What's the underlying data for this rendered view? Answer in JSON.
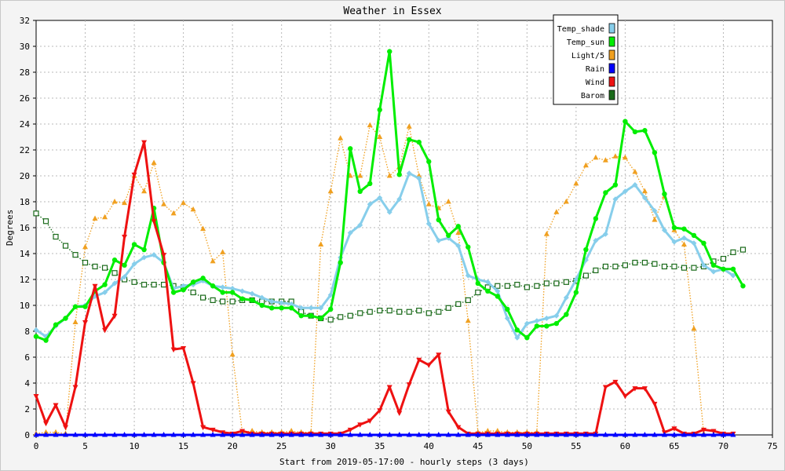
{
  "chart_data": {
    "type": "line",
    "title": "Weather in Essex",
    "xlabel": "Start from 2019-05-17:00 - hourly steps (3 days)",
    "ylabel": "Degrees",
    "xlim": [
      0,
      75
    ],
    "ylim": [
      0,
      32
    ],
    "xticks": [
      0,
      5,
      10,
      15,
      20,
      25,
      30,
      35,
      40,
      45,
      50,
      55,
      60,
      65,
      70,
      75
    ],
    "yticks": [
      0,
      2,
      4,
      6,
      8,
      10,
      12,
      14,
      16,
      18,
      20,
      22,
      24,
      26,
      28,
      30,
      32
    ],
    "grid": true,
    "legend_position": "top-right",
    "series": [
      {
        "name": "Temp_shade",
        "color": "#87ceeb",
        "marker": "diamond",
        "line": "solid",
        "values": [
          8.1,
          7.6,
          8.4,
          9.0,
          9.9,
          10.0,
          10.7,
          11.0,
          11.7,
          12.2,
          13.2,
          13.7,
          13.9,
          13.3,
          11.3,
          11.5,
          11.6,
          11.9,
          11.5,
          11.4,
          11.3,
          11.1,
          10.9,
          10.6,
          10.3,
          10.2,
          10.1,
          9.8,
          9.8,
          9.8,
          10.8,
          13.7,
          15.6,
          16.2,
          17.8,
          18.3,
          17.2,
          18.2,
          20.2,
          19.8,
          16.3,
          15.0,
          15.2,
          14.6,
          12.3,
          12.0,
          11.8,
          11.1,
          9.0,
          7.5,
          8.6,
          8.8,
          9.0,
          9.2,
          10.6,
          12.0,
          13.5,
          15.0,
          15.5,
          18.2,
          18.8,
          19.3,
          18.3,
          17.3,
          15.8,
          14.9,
          15.2,
          14.8,
          13.1,
          12.6,
          12.8,
          12.3
        ]
      },
      {
        "name": "Temp_sun",
        "color": "#00ee00",
        "marker": "circle",
        "line": "solid",
        "values": [
          7.6,
          7.3,
          8.5,
          9.0,
          9.9,
          9.9,
          11.1,
          11.6,
          13.5,
          13.1,
          14.7,
          14.3,
          17.5,
          13.3,
          11.0,
          11.2,
          11.8,
          12.1,
          11.5,
          11.0,
          11.0,
          10.5,
          10.4,
          10.0,
          9.8,
          9.8,
          9.8,
          9.2,
          9.2,
          9.0,
          9.7,
          13.3,
          22.1,
          18.8,
          19.4,
          25.1,
          29.6,
          20.1,
          22.8,
          22.6,
          21.1,
          16.6,
          15.4,
          16.1,
          14.5,
          11.7,
          11.1,
          10.7,
          9.7,
          8.1,
          7.5,
          8.4,
          8.4,
          8.6,
          9.3,
          11.0,
          14.3,
          16.7,
          18.7,
          19.3,
          24.2,
          23.4,
          23.5,
          21.8,
          18.6,
          16.0,
          15.9,
          15.4,
          14.8,
          13.1,
          12.8,
          12.8,
          11.5
        ]
      },
      {
        "name": "Light/5",
        "color": "#f0a020",
        "marker": "triangle-up",
        "line": "dotted",
        "values": [
          0.1,
          0.2,
          0.2,
          0.1,
          8.7,
          14.5,
          16.7,
          16.8,
          18.0,
          17.9,
          20.0,
          18.8,
          21.0,
          17.8,
          17.1,
          17.9,
          17.4,
          15.9,
          13.4,
          14.1,
          6.2,
          0.2,
          0.3,
          0.2,
          0.2,
          0.2,
          0.3,
          0.2,
          0.2,
          14.7,
          18.8,
          22.9,
          20.0,
          20.0,
          23.9,
          23.0,
          20.0,
          20.7,
          23.8,
          20.0,
          17.8,
          17.5,
          18.0,
          15.6,
          8.8,
          0.2,
          0.3,
          0.3,
          0.2,
          0.2,
          0.2,
          0.2,
          15.5,
          17.2,
          18.0,
          19.4,
          20.8,
          21.4,
          21.2,
          21.5,
          21.4,
          20.3,
          18.8,
          16.6,
          18.4,
          15.8,
          14.7,
          8.2,
          0.1
        ]
      },
      {
        "name": "Rain",
        "color": "#0000ff",
        "marker": "triangle-up",
        "line": "solid",
        "values": [
          0,
          0,
          0,
          0,
          0,
          0,
          0,
          0,
          0,
          0,
          0,
          0,
          0,
          0,
          0,
          0,
          0,
          0,
          0,
          0,
          0,
          0,
          0,
          0,
          0,
          0,
          0,
          0,
          0,
          0,
          0,
          0,
          0,
          0,
          0,
          0,
          0,
          0,
          0,
          0,
          0,
          0,
          0,
          0,
          0,
          0,
          0,
          0,
          0,
          0,
          0,
          0,
          0,
          0,
          0,
          0,
          0,
          0,
          0,
          0,
          0,
          0,
          0,
          0,
          0,
          0,
          0,
          0,
          0,
          0,
          0,
          0
        ]
      },
      {
        "name": "Wind",
        "color": "#ee1111",
        "marker": "triangle-down",
        "line": "solid",
        "values": [
          3.0,
          0.9,
          2.3,
          0.6,
          3.7,
          8.7,
          11.5,
          8.1,
          9.2,
          15.3,
          20.1,
          22.6,
          16.5,
          13.9,
          6.6,
          6.7,
          4.0,
          0.6,
          0.4,
          0.2,
          0.1,
          0.3,
          0.1,
          0.1,
          0.1,
          0.1,
          0.1,
          0.1,
          0.1,
          0.1,
          0.1,
          0.1,
          0.4,
          0.8,
          1.1,
          1.9,
          3.7,
          1.7,
          3.9,
          5.8,
          5.4,
          6.2,
          1.8,
          0.6,
          0.1,
          0.1,
          0.1,
          0.1,
          0.1,
          0.1,
          0.1,
          0.1,
          0.1,
          0.1,
          0.1,
          0.1,
          0.1,
          0.1,
          3.7,
          4.1,
          3.0,
          3.6,
          3.6,
          2.4,
          0.2,
          0.5,
          0.1,
          0.1,
          0.4,
          0.3,
          0.1,
          0.1
        ]
      },
      {
        "name": "Barom",
        "color": "#1a6a1a",
        "marker": "square-open",
        "line": "dotted",
        "values": [
          17.1,
          16.5,
          15.3,
          14.6,
          13.9,
          13.3,
          13.0,
          12.9,
          12.5,
          12.0,
          11.8,
          11.6,
          11.6,
          11.6,
          11.5,
          11.4,
          11.0,
          10.6,
          10.4,
          10.3,
          10.3,
          10.4,
          10.4,
          10.3,
          10.3,
          10.3,
          10.3,
          9.5,
          9.2,
          9.0,
          8.9,
          9.1,
          9.2,
          9.4,
          9.5,
          9.6,
          9.6,
          9.5,
          9.5,
          9.6,
          9.4,
          9.5,
          9.8,
          10.1,
          10.4,
          11.0,
          11.4,
          11.5,
          11.5,
          11.6,
          11.4,
          11.5,
          11.7,
          11.7,
          11.8,
          11.9,
          12.3,
          12.7,
          13.0,
          13.0,
          13.1,
          13.3,
          13.3,
          13.2,
          13.0,
          13.0,
          12.9,
          12.9,
          13.0,
          13.4,
          13.6,
          14.1,
          14.3
        ]
      }
    ]
  }
}
